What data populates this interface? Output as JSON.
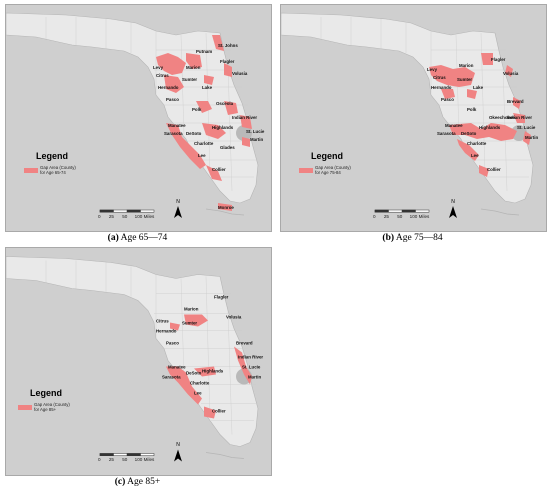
{
  "panels": [
    {
      "caption_letter": "(a)",
      "caption_text": "Age 65—74",
      "legend_title": "Legend",
      "legend_line1": "Gap Area (County)",
      "legend_line2": "for Age 65-74",
      "scale": [
        "0",
        "25",
        "50",
        "100 Miles"
      ],
      "north": "N",
      "counties": [
        "St. Johns",
        "Putnam",
        "Flagler",
        "Levy",
        "Marion",
        "Volusia",
        "Citrus",
        "Sumter",
        "Hernando",
        "Lake",
        "Pasco",
        "Polk",
        "Osceola",
        "Indian River",
        "Manatee",
        "Highlands",
        "St. Lucie",
        "Sarasota",
        "DeSoto",
        "Martin",
        "Charlotte",
        "Glades",
        "Lee",
        "Collier",
        "Monroe"
      ],
      "extra": "Monroe"
    },
    {
      "caption_letter": "(b)",
      "caption_text": "Age 75—84",
      "legend_title": "Legend",
      "legend_line1": "Gap Area (County)",
      "legend_line2": "for Age 75-84",
      "scale": [
        "0",
        "25",
        "50",
        "100 Miles"
      ],
      "north": "N",
      "counties": [
        "Flagler",
        "Levy",
        "Marion",
        "Volusia",
        "Citrus",
        "Sumter",
        "Hernando",
        "Lake",
        "Pasco",
        "Brevard",
        "Polk",
        "Okeechobee",
        "Indian River",
        "Manatee",
        "Highlands",
        "St. Lucie",
        "Sarasota",
        "DeSoto",
        "Martin",
        "Charlotte",
        "Lee",
        "Collier"
      ],
      "extra": ""
    },
    {
      "caption_letter": "(c)",
      "caption_text": "Age 85+",
      "legend_title": "Legend",
      "legend_line1": "Gap Area (County)",
      "legend_line2": "for Age 85+",
      "scale": [
        "0",
        "25",
        "50",
        "100 Miles"
      ],
      "north": "N",
      "counties": [
        "Flagler",
        "Marion",
        "Volusia",
        "Citrus",
        "Sumter",
        "Hernando",
        "Pasco",
        "Brevard",
        "Indian River",
        "Manatee",
        "St. Lucie",
        "DeSoto",
        "Highlands",
        "Martin",
        "Sarasota",
        "Charlotte",
        "Lee",
        "Collier"
      ],
      "extra": ""
    }
  ],
  "colors": {
    "sea": "#cfcfcf",
    "land": "#e9e9e9",
    "gap": "#f08383",
    "lake": "#b9b9b9"
  }
}
